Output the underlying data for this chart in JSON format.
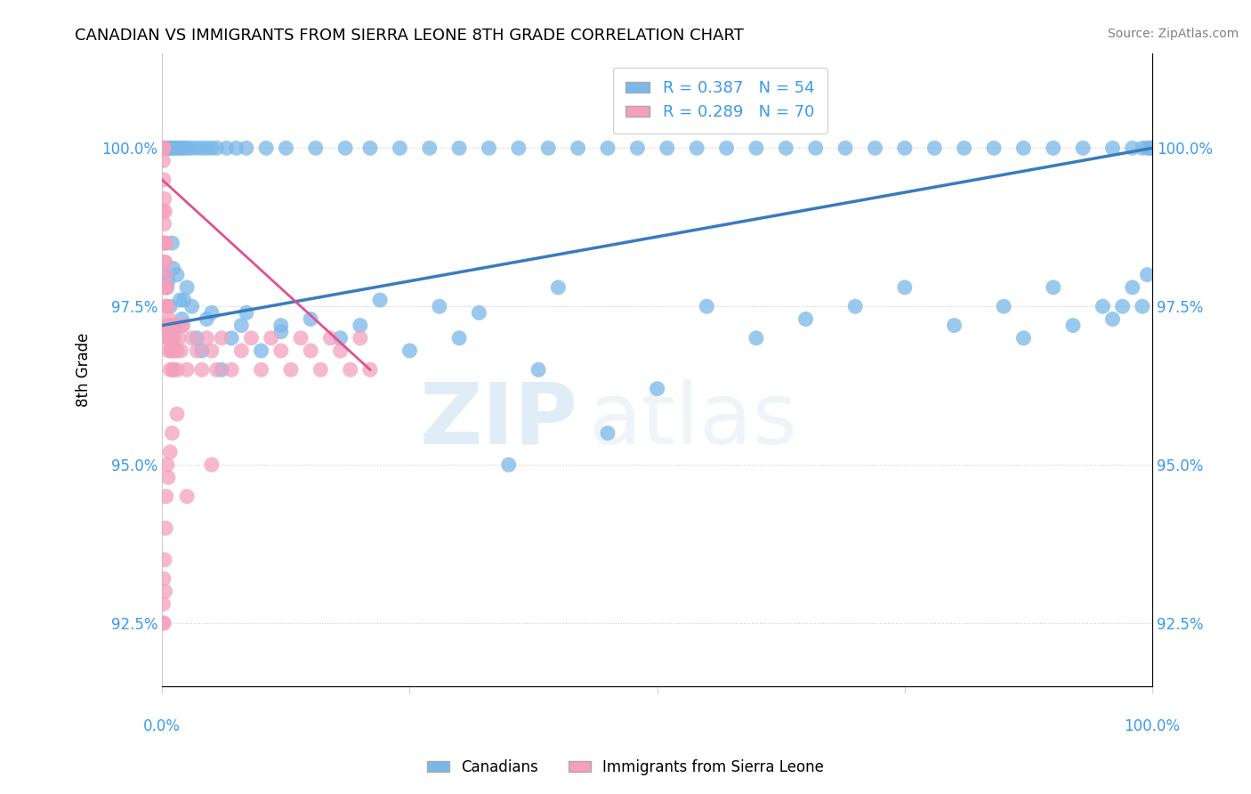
{
  "title": "CANADIAN VS IMMIGRANTS FROM SIERRA LEONE 8TH GRADE CORRELATION CHART",
  "source": "Source: ZipAtlas.com",
  "ylabel": "8th Grade",
  "xlim": [
    0.0,
    100.0
  ],
  "ylim": [
    91.5,
    101.5
  ],
  "yticks": [
    92.5,
    95.0,
    97.5,
    100.0
  ],
  "legend_blue_label": "R = 0.387   N = 54",
  "legend_pink_label": "R = 0.289   N = 70",
  "watermark_zip": "ZIP",
  "watermark_atlas": "atlas",
  "blue_color": "#7ab8e8",
  "pink_color": "#f4a0bc",
  "blue_line_color": "#3a7bbf",
  "pink_line_color": "#e05090",
  "canadians_x": [
    0.3,
    0.5,
    0.8,
    1.0,
    1.3,
    1.5,
    1.8,
    2.0,
    2.5,
    3.0,
    3.5,
    4.0,
    5.0,
    6.0,
    7.0,
    8.0,
    10.0,
    12.0,
    15.0,
    18.0,
    20.0,
    25.0,
    28.0,
    30.0,
    35.0,
    38.0,
    40.0,
    45.0,
    50.0,
    55.0,
    60.0,
    65.0,
    70.0,
    75.0,
    80.0,
    85.0,
    87.0,
    90.0,
    92.0,
    95.0,
    96.0,
    97.0,
    98.0,
    99.0,
    99.5,
    99.8,
    0.6,
    1.1,
    2.2,
    4.5,
    8.5,
    12.0,
    22.0,
    32.0
  ],
  "canadians_y": [
    98.0,
    97.8,
    97.5,
    98.5,
    97.2,
    98.0,
    97.6,
    97.3,
    97.8,
    97.5,
    97.0,
    96.8,
    97.4,
    96.5,
    97.0,
    97.2,
    96.8,
    97.1,
    97.3,
    97.0,
    97.2,
    96.8,
    97.5,
    97.0,
    95.0,
    96.5,
    97.8,
    95.5,
    96.2,
    97.5,
    97.0,
    97.3,
    97.5,
    97.8,
    97.2,
    97.5,
    97.0,
    97.8,
    97.2,
    97.5,
    97.3,
    97.5,
    97.8,
    97.5,
    98.0,
    100.0,
    97.9,
    98.1,
    97.6,
    97.3,
    97.4,
    97.2,
    97.6,
    97.4
  ],
  "canadians_top_x": [
    0.3,
    0.5,
    0.7,
    0.9,
    1.1,
    1.3,
    1.5,
    1.8,
    2.0,
    2.3,
    2.6,
    3.0,
    3.5,
    4.0,
    4.5,
    5.0,
    5.5,
    6.5,
    7.5,
    8.5,
    10.5,
    12.5,
    15.5,
    18.5,
    21.0,
    24.0,
    27.0,
    30.0,
    33.0,
    36.0,
    39.0,
    42.0,
    45.0,
    48.0,
    51.0,
    54.0,
    57.0,
    60.0,
    63.0,
    66.0,
    69.0,
    72.0,
    75.0,
    78.0,
    81.0,
    84.0,
    87.0,
    90.0,
    93.0,
    96.0,
    98.0,
    99.0,
    99.5,
    99.8
  ],
  "canadians_top_y": [
    100.0,
    100.0,
    100.0,
    100.0,
    100.0,
    100.0,
    100.0,
    100.0,
    100.0,
    100.0,
    100.0,
    100.0,
    100.0,
    100.0,
    100.0,
    100.0,
    100.0,
    100.0,
    100.0,
    100.0,
    100.0,
    100.0,
    100.0,
    100.0,
    100.0,
    100.0,
    100.0,
    100.0,
    100.0,
    100.0,
    100.0,
    100.0,
    100.0,
    100.0,
    100.0,
    100.0,
    100.0,
    100.0,
    100.0,
    100.0,
    100.0,
    100.0,
    100.0,
    100.0,
    100.0,
    100.0,
    100.0,
    100.0,
    100.0,
    100.0,
    100.0,
    100.0,
    100.0,
    100.0
  ],
  "sierraleone_x": [
    0.05,
    0.1,
    0.12,
    0.15,
    0.18,
    0.2,
    0.22,
    0.25,
    0.28,
    0.3,
    0.32,
    0.35,
    0.38,
    0.4,
    0.42,
    0.45,
    0.48,
    0.5,
    0.55,
    0.6,
    0.65,
    0.7,
    0.75,
    0.8,
    0.85,
    0.9,
    0.95,
    1.0,
    1.1,
    1.2,
    1.3,
    1.4,
    1.5,
    1.7,
    1.9,
    2.1,
    2.5,
    3.0,
    3.5,
    4.0,
    4.5,
    5.0,
    5.5,
    6.0,
    7.0,
    8.0,
    9.0,
    10.0,
    11.0,
    12.0,
    13.0,
    14.0,
    15.0,
    16.0,
    17.0,
    18.0,
    19.0,
    20.0,
    21.0,
    0.08,
    0.15,
    0.25,
    0.35,
    0.45,
    0.6,
    0.75,
    0.9,
    1.1,
    1.5,
    2.0
  ],
  "sierraleone_y": [
    100.0,
    99.8,
    100.0,
    99.5,
    100.0,
    98.8,
    99.2,
    98.5,
    99.0,
    98.2,
    97.8,
    98.0,
    97.5,
    98.5,
    97.2,
    97.8,
    97.0,
    97.5,
    97.2,
    97.0,
    96.8,
    97.3,
    97.0,
    96.5,
    97.0,
    96.8,
    97.2,
    97.0,
    96.5,
    97.0,
    96.8,
    97.2,
    96.5,
    97.0,
    96.8,
    97.2,
    96.5,
    97.0,
    96.8,
    96.5,
    97.0,
    96.8,
    96.5,
    97.0,
    96.5,
    96.8,
    97.0,
    96.5,
    97.0,
    96.8,
    96.5,
    97.0,
    96.8,
    96.5,
    97.0,
    96.8,
    96.5,
    97.0,
    96.5,
    99.0,
    98.5,
    98.2,
    97.8,
    97.5,
    97.2,
    97.0,
    96.8,
    96.5,
    96.8,
    97.2
  ],
  "sierraleone_low_x": [
    0.05,
    0.1,
    0.15,
    0.2,
    0.25,
    0.3,
    0.35,
    0.4,
    0.5,
    0.6,
    0.8,
    1.0,
    1.5,
    2.5,
    5.0
  ],
  "sierraleone_low_y": [
    92.5,
    92.8,
    93.2,
    92.5,
    93.5,
    93.0,
    94.0,
    94.5,
    95.0,
    94.8,
    95.2,
    95.5,
    95.8,
    94.5,
    95.0
  ],
  "blue_trend_x": [
    0.0,
    100.0
  ],
  "blue_trend_y": [
    97.2,
    100.0
  ],
  "pink_trend_x": [
    0.0,
    21.0
  ],
  "pink_trend_y": [
    99.5,
    96.5
  ]
}
